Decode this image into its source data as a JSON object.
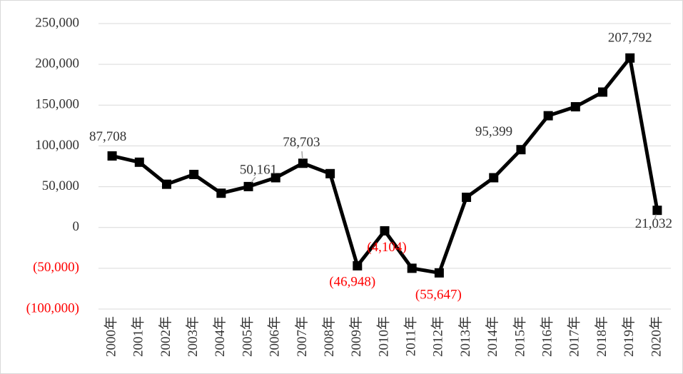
{
  "chart_data": {
    "type": "line",
    "categories": [
      "2000年",
      "2001年",
      "2002年",
      "2003年",
      "2004年",
      "2005年",
      "2006年",
      "2007年",
      "2008年",
      "2009年",
      "2010年",
      "2011年",
      "2012年",
      "2013年",
      "2014年",
      "2015年",
      "2016年",
      "2017年",
      "2018年",
      "2019年",
      "2020年"
    ],
    "values": [
      87708,
      80000,
      53000,
      65000,
      42000,
      50161,
      61000,
      78703,
      66000,
      -46948,
      -4104,
      -50000,
      -55647,
      37000,
      61000,
      95399,
      137000,
      148000,
      166000,
      207792,
      21032
    ],
    "value_labels": [
      "87,708",
      null,
      null,
      null,
      null,
      "50,161",
      null,
      "78,703",
      null,
      "(46,948)",
      "(4,104)",
      null,
      "(55,647)",
      null,
      null,
      "95,399",
      null,
      null,
      null,
      "207,792",
      "21,032"
    ],
    "color": "#000000",
    "negative_label_color": "#ff0000",
    "ylim": [
      -100000,
      250000
    ],
    "yticks": [
      {
        "value": -100000,
        "label": "(100,000)"
      },
      {
        "value": -50000,
        "label": "(50,000)"
      },
      0,
      {
        "value": 50000,
        "label": "50,000"
      },
      {
        "value": 100000,
        "label": "100,000"
      },
      {
        "value": 150000,
        "label": "150,000"
      },
      {
        "value": 200000,
        "label": "200,000"
      },
      {
        "value": 250000,
        "label": "250,000"
      }
    ],
    "grid": true
  }
}
